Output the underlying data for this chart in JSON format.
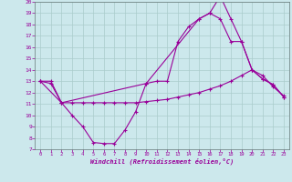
{
  "xlabel": "Windchill (Refroidissement éolien,°C)",
  "bg_color": "#cce8ec",
  "line_color": "#990099",
  "grid_color": "#aacccc",
  "xlim": [
    -0.5,
    23.5
  ],
  "ylim": [
    7,
    20
  ],
  "yticks": [
    7,
    8,
    9,
    10,
    11,
    12,
    13,
    14,
    15,
    16,
    17,
    18,
    19,
    20
  ],
  "xticks": [
    0,
    1,
    2,
    3,
    4,
    5,
    6,
    7,
    8,
    9,
    10,
    11,
    12,
    13,
    14,
    15,
    16,
    17,
    18,
    19,
    20,
    21,
    22,
    23
  ],
  "line1_x": [
    0,
    1,
    2,
    3,
    4,
    5,
    6,
    7,
    8,
    9,
    10,
    11,
    12,
    13,
    14,
    15,
    16,
    17,
    18,
    19,
    20,
    21,
    22,
    23
  ],
  "line1_y": [
    13,
    12.8,
    11.1,
    10.0,
    9.0,
    7.6,
    7.5,
    7.5,
    8.7,
    10.3,
    12.8,
    13.0,
    13.0,
    16.5,
    17.8,
    18.5,
    19.0,
    20.5,
    18.5,
    16.5,
    14.0,
    13.2,
    12.7,
    11.6
  ],
  "line2_x": [
    0,
    1,
    2,
    3,
    4,
    5,
    6,
    7,
    8,
    9,
    10,
    11,
    12,
    13,
    14,
    15,
    16,
    17,
    18,
    19,
    20,
    21,
    22,
    23
  ],
  "line2_y": [
    13,
    13,
    11.1,
    11.1,
    11.1,
    11.1,
    11.1,
    11.1,
    11.1,
    11.1,
    11.2,
    11.3,
    11.4,
    11.6,
    11.8,
    12.0,
    12.3,
    12.6,
    13.0,
    13.5,
    14.0,
    13.5,
    12.5,
    11.7
  ],
  "line3_x": [
    0,
    2,
    10,
    15,
    16,
    17,
    18,
    19,
    20,
    21,
    22,
    23
  ],
  "line3_y": [
    13,
    11.1,
    12.8,
    18.5,
    19.0,
    18.5,
    16.5,
    16.5,
    14.0,
    13.2,
    12.7,
    11.6
  ]
}
